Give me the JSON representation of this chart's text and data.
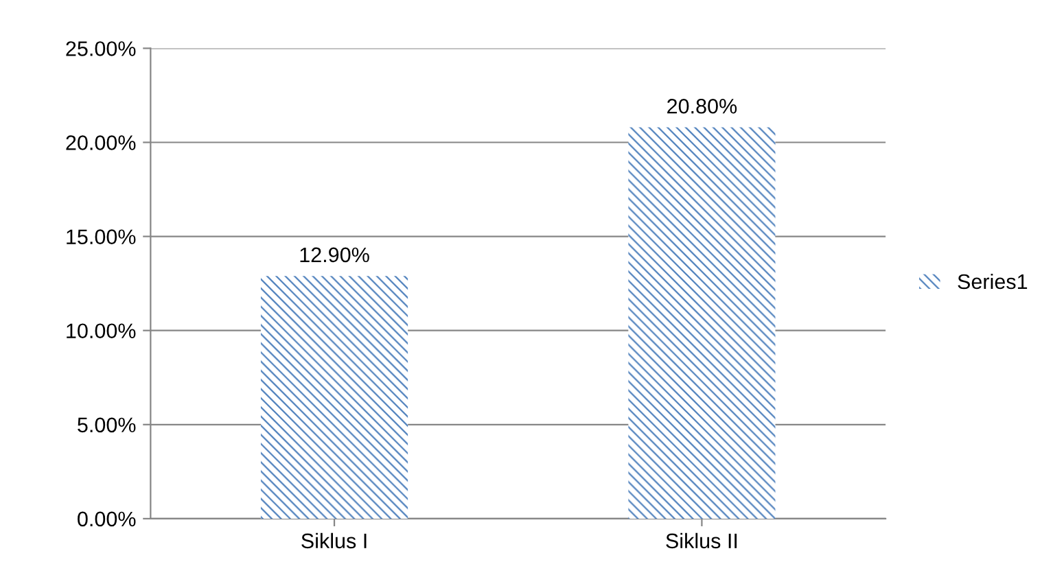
{
  "chart_data": {
    "type": "bar",
    "categories": [
      "Siklus I",
      "Siklus II"
    ],
    "series": [
      {
        "name": "Series1",
        "color": "#4f81bd",
        "values": [
          12.9,
          20.8
        ],
        "value_labels": [
          "12.90%",
          "20.80%"
        ]
      }
    ],
    "ylim": [
      0,
      25
    ],
    "yticks": [
      {
        "value": 0,
        "label": "0.00%"
      },
      {
        "value": 5,
        "label": "5.00%"
      },
      {
        "value": 10,
        "label": "10.00%"
      },
      {
        "value": 15,
        "label": "15.00%"
      },
      {
        "value": 20,
        "label": "20.00%"
      },
      {
        "value": 25,
        "label": "25.00%"
      }
    ],
    "grid": "y",
    "legend": "right"
  }
}
